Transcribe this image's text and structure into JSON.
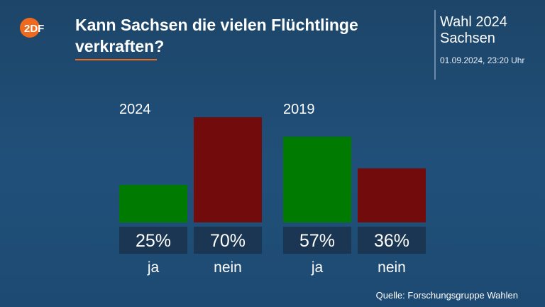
{
  "header": {
    "logo_text": "2DF",
    "title": "Kann Sachsen die vielen Flüchtlinge verkraften?",
    "election_line1": "Wahl 2024",
    "election_line2": "Sachsen",
    "timestamp": "01.09.2024, 23:20 Uhr"
  },
  "footer": {
    "source": "Quelle: Forschungsgruppe Wahlen"
  },
  "colors": {
    "ja": "#007a00",
    "nein": "#720c0c",
    "label_box": "#1a3653",
    "accent": "#f06a1e",
    "background": "#1d4569"
  },
  "chart_data": {
    "type": "bar",
    "unit": "%",
    "ylim": [
      0,
      100
    ],
    "groups": [
      {
        "name": "2024",
        "bars": [
          {
            "label": "ja",
            "value": 25,
            "display": "25%",
            "color": "#007a00"
          },
          {
            "label": "nein",
            "value": 70,
            "display": "70%",
            "color": "#720c0c"
          }
        ]
      },
      {
        "name": "2019",
        "bars": [
          {
            "label": "ja",
            "value": 57,
            "display": "57%",
            "color": "#007a00"
          },
          {
            "label": "nein",
            "value": 36,
            "display": "36%",
            "color": "#720c0c"
          }
        ]
      }
    ]
  }
}
